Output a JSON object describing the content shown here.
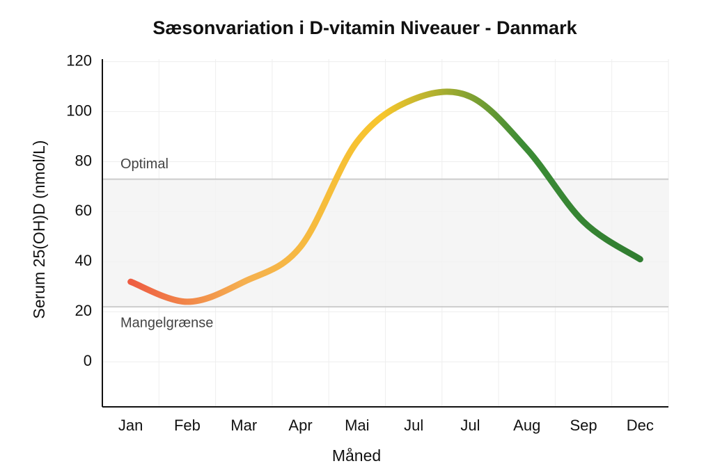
{
  "chart_data": {
    "type": "line",
    "title": "Sæsonvariation i D-vitamin Niveauer - Danmark",
    "x_label": "Måned",
    "y_label": "Serum 25(OH)D (nmol/L)",
    "categories": [
      "Jan",
      "Feb",
      "Mar",
      "Apr",
      "Mai",
      "Jul",
      "Jul",
      "Aug",
      "Sep",
      "Dec"
    ],
    "values": [
      32,
      24,
      32,
      46,
      88,
      105,
      106,
      85,
      56,
      41
    ],
    "colors": [
      "#ec4a3f",
      "#f5b050",
      "#f7c62c",
      "#3c8c35",
      "#2e7a30"
    ],
    "ylim": [
      -18,
      121
    ],
    "yticks": [
      0,
      20,
      40,
      60,
      80,
      100,
      120
    ],
    "grid": true,
    "bands": [
      {
        "label": "Optimal",
        "value": 73
      },
      {
        "label": "Mangelgrænse",
        "value": 22
      }
    ]
  }
}
